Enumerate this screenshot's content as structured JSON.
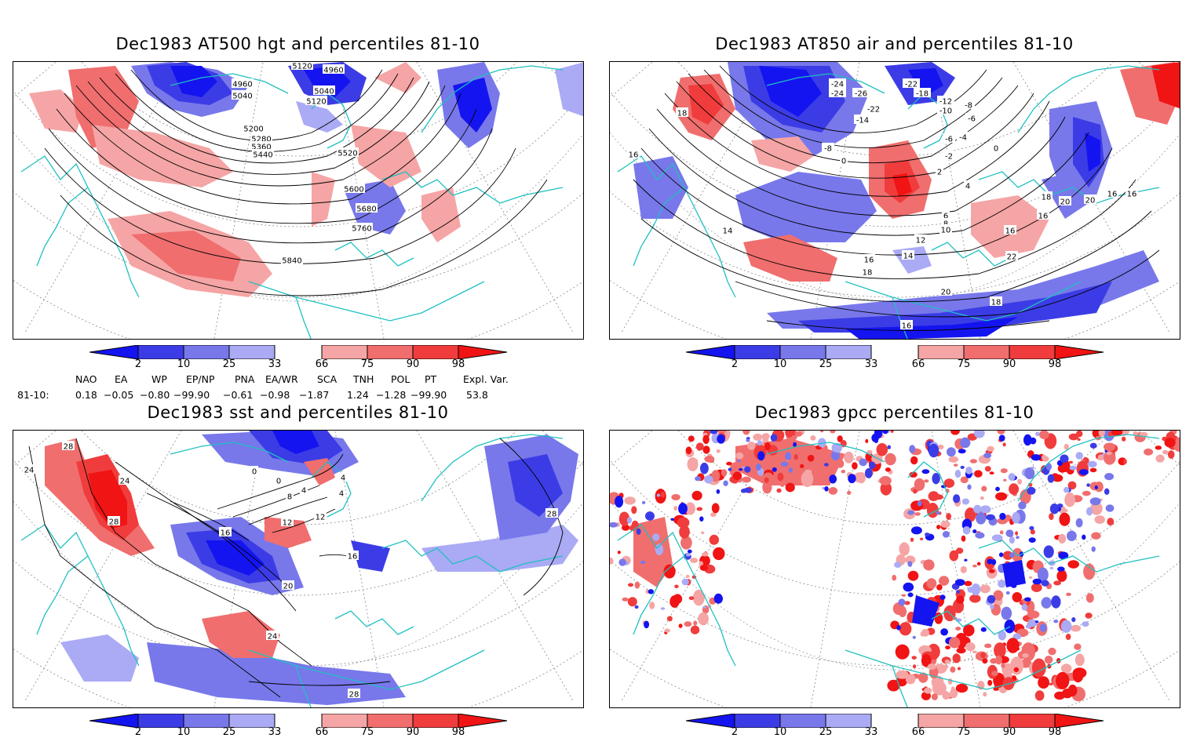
{
  "panels": [
    {
      "id": "hgt",
      "title": "Dec1983 AT500 hgt and percentiles 81-10",
      "contour_labels": [
        "4960",
        "4960",
        "5120",
        "5040",
        "5040",
        "5120",
        "5200",
        "5280",
        "5360",
        "5440",
        "5520",
        "5600",
        "5680",
        "5760",
        "5840"
      ]
    },
    {
      "id": "air",
      "title": "Dec1983 AT850 air and percentiles 81-10",
      "contour_labels": [
        "-24",
        "-24",
        "-26",
        "-22",
        "-18",
        "-12",
        "-10",
        "-8",
        "-6",
        "-14",
        "-22",
        "-8",
        "-6",
        "-4",
        "0",
        "-2",
        "0",
        "2",
        "4",
        "6",
        "8",
        "10",
        "12",
        "14",
        "16",
        "18",
        "20",
        "16",
        "14",
        "16",
        "18",
        "20",
        "22",
        "18",
        "16",
        "16",
        "16",
        "16",
        "18",
        "20"
      ]
    },
    {
      "id": "sst",
      "title": "Dec1983 sst and percentiles 81-10",
      "contour_labels": [
        "28",
        "24",
        "24",
        "28",
        "0",
        "0",
        "4",
        "8",
        "4",
        "4",
        "12",
        "16",
        "16",
        "20",
        "24",
        "28",
        "28",
        "12"
      ]
    },
    {
      "id": "gpcc",
      "title": "Dec1983 gpcc percentiles 81-10",
      "contour_labels": []
    }
  ],
  "colorbar": {
    "labels": [
      "2",
      "10",
      "25",
      "33",
      "66",
      "75",
      "90",
      "98"
    ],
    "colors": {
      "b1": "#1414f0",
      "b2": "#3c3ce6",
      "b3": "#7878eb",
      "b4": "#aaaaf5",
      "r1": "#f5a5a5",
      "r2": "#f06e6e",
      "r3": "#f03c3c",
      "r4": "#f01414"
    }
  },
  "teleconnections": {
    "headers": [
      "NAO",
      "EA",
      "WP",
      "EP/NP",
      "PNA",
      "EA/WR",
      "SCA",
      "TNH",
      "POL",
      "PT",
      "Expl. Var."
    ],
    "row_label": "81-10:",
    "values": [
      "0.18",
      "−0.05",
      "−0.80",
      "−99.90",
      "−0.61",
      "−0.98",
      "−1.87",
      "1.24",
      "−1.28",
      "−99.90",
      "53.8"
    ]
  },
  "map_colors": {
    "coast": "#20c0c0",
    "contour": "#000000",
    "grid": "#888888"
  }
}
